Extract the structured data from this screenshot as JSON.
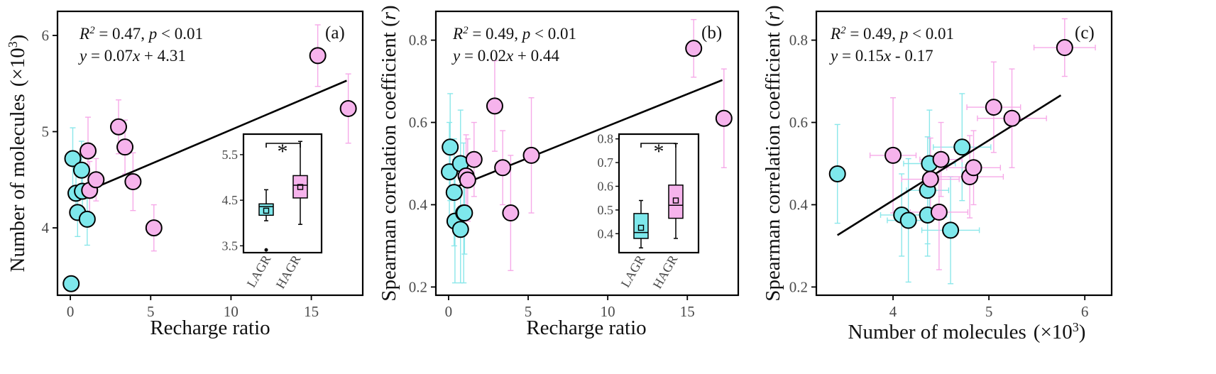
{
  "colors": {
    "lagr": "#7ee8ec",
    "hagr": "#f6b3ec",
    "lagr_err": "#8be7ea",
    "hagr_err": "#f6a9e8"
  },
  "chart_data": [
    {
      "type": "scatter",
      "panel": "(a)",
      "xlabel": "Recharge ratio",
      "ylabel_main": "Number of molecules",
      "ylabel_unit": "(×10",
      "ylabel_exp": "3",
      "ylabel_close": ")",
      "xlim": [
        -0.8,
        18.2
      ],
      "ylim": [
        3.3,
        6.25
      ],
      "xticks": [
        "0",
        "5",
        "10",
        "15"
      ],
      "yticks": [
        "4",
        "5",
        "6"
      ],
      "stats": {
        "r2": "R",
        "r2_sup": "2",
        "r2_rest": " = 0.47, ",
        "p": "p",
        "p_rest": " < 0.01",
        "eq_y": "y",
        "eq_mid": " = 0.07",
        "eq_x": "x",
        "eq_end": " + 4.31"
      },
      "fit": {
        "x": [
          0.3,
          17.2
        ],
        "y": [
          4.33,
          5.53
        ]
      },
      "points_lagr": [
        {
          "x": 0.15,
          "y": 4.72,
          "yerr": 0.32
        },
        {
          "x": 0.35,
          "y": 4.36,
          "yerr": 0.25
        },
        {
          "x": 0.45,
          "y": 4.16,
          "yerr": 0.25
        },
        {
          "x": 0.7,
          "y": 4.6,
          "yerr": 0.3
        },
        {
          "x": 0.75,
          "y": 4.38,
          "yerr": 0.27
        },
        {
          "x": 1.05,
          "y": 4.09,
          "yerr": 0.27
        },
        {
          "x": 0.05,
          "y": 3.42,
          "yerr": 0.0
        }
      ],
      "points_hagr": [
        {
          "x": 1.1,
          "y": 4.8,
          "yerr": 0.35
        },
        {
          "x": 1.2,
          "y": 4.39,
          "yerr": 0.3
        },
        {
          "x": 1.6,
          "y": 4.5,
          "yerr": 0.22
        },
        {
          "x": 3.0,
          "y": 5.05,
          "yerr": 0.28
        },
        {
          "x": 3.4,
          "y": 4.84,
          "yerr": 0.28
        },
        {
          "x": 3.9,
          "y": 4.48,
          "yerr": 0.3
        },
        {
          "x": 5.2,
          "y": 4.0,
          "yerr": 0.24
        },
        {
          "x": 15.4,
          "y": 5.79,
          "yerr": 0.32
        },
        {
          "x": 17.3,
          "y": 5.24,
          "yerr": 0.36
        }
      ],
      "inset": {
        "categories": [
          "LAGR",
          "HAGR"
        ],
        "ylim": [
          3.35,
          5.95
        ],
        "yticks": [
          "3.5",
          "4.5",
          "5.5"
        ],
        "significance": "*",
        "boxes": [
          {
            "name": "LAGR",
            "min": 4.05,
            "q1": 4.17,
            "median": 4.36,
            "q3": 4.42,
            "max": 4.73,
            "mean": 4.27,
            "outliers": [
              3.41
            ]
          },
          {
            "name": "HAGR",
            "min": 3.97,
            "q1": 4.55,
            "median": 4.83,
            "q3": 5.04,
            "max": 5.79,
            "mean": 4.79,
            "outliers": []
          }
        ]
      }
    },
    {
      "type": "scatter",
      "panel": "(b)",
      "xlabel": "Recharge ratio",
      "ylabel_main": "Spearman correlation coefficient (",
      "ylabel_italic": "r",
      "ylabel_close": ")",
      "xlim": [
        -0.8,
        18.2
      ],
      "ylim": [
        0.18,
        0.87
      ],
      "xticks": [
        "0",
        "5",
        "10",
        "15"
      ],
      "yticks": [
        "0.2",
        "0.4",
        "0.6",
        "0.8"
      ],
      "stats": {
        "r2": "R",
        "r2_sup": "2",
        "r2_rest": " = 0.49, ",
        "p": "p",
        "p_rest": " < 0.01",
        "eq_y": "y",
        "eq_mid": " = 0.02",
        "eq_x": "x",
        "eq_end": " + 0.44"
      },
      "fit": {
        "x": [
          0.0,
          17.2
        ],
        "y": [
          0.436,
          0.703
        ]
      },
      "points_lagr": [
        {
          "x": 0.05,
          "y": 0.48,
          "yerr": 0.12
        },
        {
          "x": 0.1,
          "y": 0.54,
          "yerr": 0.13
        },
        {
          "x": 0.35,
          "y": 0.43,
          "yerr": 0.13
        },
        {
          "x": 0.4,
          "y": 0.36,
          "yerr": 0.15
        },
        {
          "x": 0.75,
          "y": 0.5,
          "yerr": 0.13
        },
        {
          "x": 0.75,
          "y": 0.34,
          "yerr": 0.13
        },
        {
          "x": 0.95,
          "y": 0.38,
          "yerr": 0.17
        },
        {
          "x": 1.0,
          "y": 0.38,
          "yerr": 0.1
        }
      ],
      "points_hagr": [
        {
          "x": 1.1,
          "y": 0.47,
          "yerr": 0.1
        },
        {
          "x": 1.2,
          "y": 0.46,
          "yerr": 0.1
        },
        {
          "x": 1.6,
          "y": 0.51,
          "yerr": 0.09
        },
        {
          "x": 2.9,
          "y": 0.64,
          "yerr": 0.11
        },
        {
          "x": 3.4,
          "y": 0.49,
          "yerr": 0.09
        },
        {
          "x": 3.9,
          "y": 0.38,
          "yerr": 0.14
        },
        {
          "x": 5.2,
          "y": 0.52,
          "yerr": 0.14
        },
        {
          "x": 15.4,
          "y": 0.78,
          "yerr": 0.07
        },
        {
          "x": 17.3,
          "y": 0.61,
          "yerr": 0.12
        }
      ],
      "inset": {
        "categories": [
          "LAGR",
          "HAGR"
        ],
        "ylim": [
          0.32,
          0.82
        ],
        "yticks": [
          "0.4",
          "0.5",
          "0.6",
          "0.7",
          "0.8"
        ],
        "significance": "*",
        "boxes": [
          {
            "name": "LAGR",
            "min": 0.34,
            "q1": 0.38,
            "median": 0.405,
            "q3": 0.485,
            "max": 0.54,
            "mean": 0.425,
            "outliers": []
          },
          {
            "name": "HAGR",
            "min": 0.38,
            "q1": 0.465,
            "median": 0.52,
            "q3": 0.605,
            "max": 0.78,
            "mean": 0.54,
            "outliers": []
          }
        ]
      }
    },
    {
      "type": "scatter",
      "panel": "(c)",
      "xlabel_main": "Number of molecules",
      "xlabel_unit": "(×10",
      "xlabel_exp": "3",
      "xlabel_close": ")",
      "ylabel_main": "Spearman correlation coefficient (",
      "ylabel_italic": "r",
      "ylabel_close": ")",
      "xlim": [
        3.2,
        6.28
      ],
      "ylim": [
        0.18,
        0.87
      ],
      "xticks": [
        "4",
        "5",
        "6"
      ],
      "yticks": [
        "0.2",
        "0.4",
        "0.6",
        "0.8"
      ],
      "stats": {
        "r2": "R",
        "r2_sup": "2",
        "r2_rest": " = 0.49, ",
        "p": "p",
        "p_rest": " < 0.01",
        "eq_y": "y",
        "eq_mid": " = 0.15",
        "eq_x": "x",
        "eq_end": " - 0.17"
      },
      "fit": {
        "x": [
          3.42,
          5.75
        ],
        "y": [
          0.326,
          0.666
        ]
      },
      "points_lagr": [
        {
          "x": 3.42,
          "y": 0.475,
          "xerr": 0.0,
          "yerr": 0.12
        },
        {
          "x": 4.09,
          "y": 0.375,
          "xerr": 0.22,
          "yerr": 0.1
        },
        {
          "x": 4.16,
          "y": 0.362,
          "xerr": 0.22,
          "yerr": 0.15
        },
        {
          "x": 4.36,
          "y": 0.435,
          "xerr": 0.22,
          "yerr": 0.13
        },
        {
          "x": 4.36,
          "y": 0.375,
          "xerr": 0.2,
          "yerr": 0.1
        },
        {
          "x": 4.38,
          "y": 0.5,
          "xerr": 0.27,
          "yerr": 0.13
        },
        {
          "x": 4.6,
          "y": 0.338,
          "xerr": 0.3,
          "yerr": 0.13
        },
        {
          "x": 4.72,
          "y": 0.54,
          "xerr": 0.3,
          "yerr": 0.13
        }
      ],
      "points_hagr": [
        {
          "x": 4.0,
          "y": 0.52,
          "xerr": 0.24,
          "yerr": 0.14
        },
        {
          "x": 4.39,
          "y": 0.462,
          "xerr": 0.3,
          "yerr": 0.1
        },
        {
          "x": 4.48,
          "y": 0.382,
          "xerr": 0.3,
          "yerr": 0.14
        },
        {
          "x": 4.5,
          "y": 0.51,
          "xerr": 0.22,
          "yerr": 0.09
        },
        {
          "x": 4.8,
          "y": 0.468,
          "xerr": 0.35,
          "yerr": 0.1
        },
        {
          "x": 4.84,
          "y": 0.49,
          "xerr": 0.28,
          "yerr": 0.09
        },
        {
          "x": 5.05,
          "y": 0.637,
          "xerr": 0.28,
          "yerr": 0.11
        },
        {
          "x": 5.24,
          "y": 0.61,
          "xerr": 0.36,
          "yerr": 0.12
        },
        {
          "x": 5.79,
          "y": 0.782,
          "xerr": 0.32,
          "yerr": 0.07
        }
      ]
    }
  ]
}
